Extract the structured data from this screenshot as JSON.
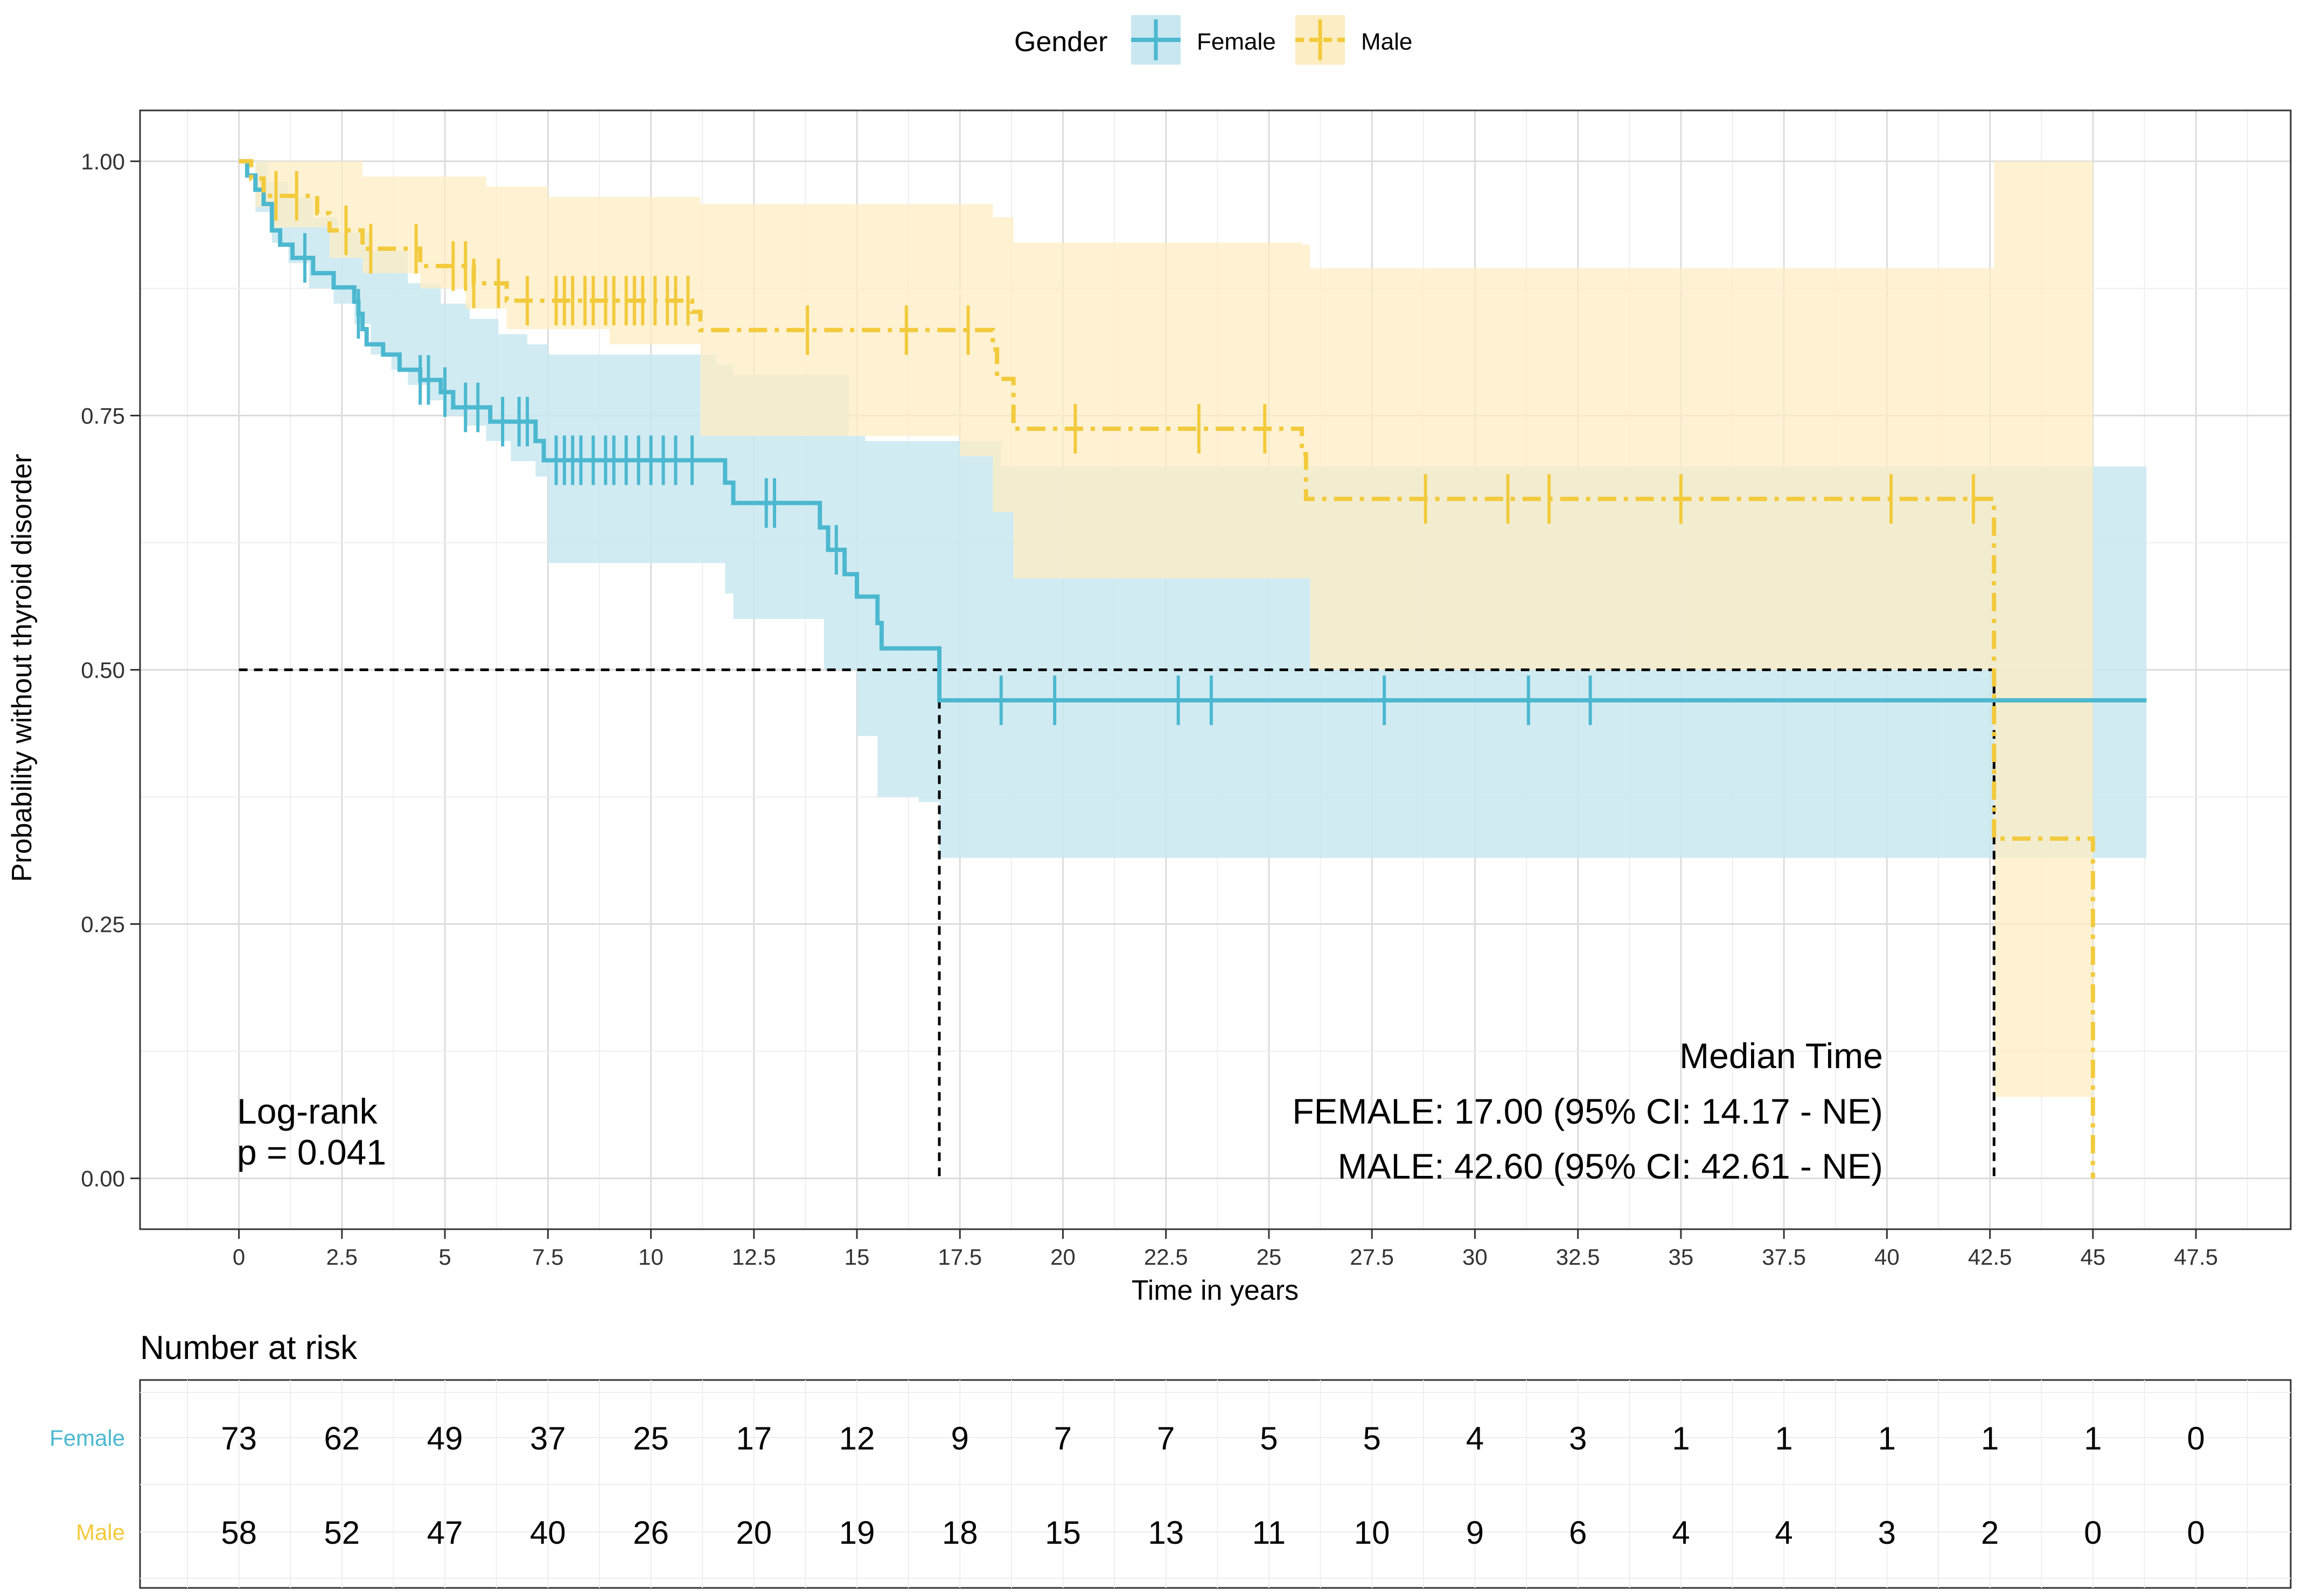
{
  "chart_data": {
    "type": "line",
    "subtype": "kaplan-meier",
    "xlabel": "Time in years",
    "ylabel": "Probability without thyroid disorder",
    "xlim": [
      -2.4,
      49.8
    ],
    "ylim": [
      -0.05,
      1.05
    ],
    "x_ticks": [
      "0",
      "2.5",
      "5",
      "7.5",
      "10",
      "12.5",
      "15",
      "17.5",
      "20",
      "22.5",
      "25",
      "27.5",
      "30",
      "32.5",
      "35",
      "37.5",
      "40",
      "42.5",
      "45",
      "47.5"
    ],
    "y_ticks": [
      "0.00",
      "0.25",
      "0.50",
      "0.75",
      "1.00"
    ],
    "grid": true,
    "legend": {
      "title": "Gender",
      "position": "top-center",
      "entries": [
        "Female",
        "Male"
      ]
    },
    "colors": {
      "Female": "#4cb8d0",
      "Male": "#f2ca3c",
      "Female_ci": "#c9e7f1",
      "Male_ci": "#fdedc4",
      "overlap": "#d4e4c6"
    },
    "series": [
      {
        "name": "Female",
        "steps": [
          [
            0,
            1.0
          ],
          [
            0.2,
            0.986
          ],
          [
            0.4,
            0.972
          ],
          [
            0.6,
            0.958
          ],
          [
            0.8,
            0.932
          ],
          [
            1.0,
            0.918
          ],
          [
            1.3,
            0.905
          ],
          [
            1.8,
            0.89
          ],
          [
            2.3,
            0.876
          ],
          [
            2.8,
            0.862
          ],
          [
            2.9,
            0.85
          ],
          [
            3.0,
            0.835
          ],
          [
            3.1,
            0.82
          ],
          [
            3.5,
            0.81
          ],
          [
            3.9,
            0.795
          ],
          [
            4.4,
            0.785
          ],
          [
            4.9,
            0.773
          ],
          [
            5.2,
            0.758
          ],
          [
            6.1,
            0.744
          ],
          [
            7.2,
            0.725
          ],
          [
            7.4,
            0.706
          ],
          [
            11.8,
            0.684
          ],
          [
            12.0,
            0.664
          ],
          [
            14.1,
            0.64
          ],
          [
            14.3,
            0.618
          ],
          [
            14.7,
            0.594
          ],
          [
            15.0,
            0.572
          ],
          [
            15.5,
            0.546
          ],
          [
            15.6,
            0.521
          ],
          [
            17.0,
            0.47
          ],
          [
            46.3,
            0.47
          ]
        ],
        "ci_upper": [
          [
            0,
            1.0
          ],
          [
            0.4,
            1.0
          ],
          [
            0.7,
            0.98
          ],
          [
            1.2,
            0.965
          ],
          [
            1.8,
            0.945
          ],
          [
            2.4,
            0.93
          ],
          [
            3.2,
            0.912
          ],
          [
            4.1,
            0.88
          ],
          [
            4.9,
            0.86
          ],
          [
            5.6,
            0.845
          ],
          [
            6.3,
            0.83
          ],
          [
            7.0,
            0.82
          ],
          [
            7.5,
            0.81
          ],
          [
            11.6,
            0.8
          ],
          [
            12.0,
            0.79
          ],
          [
            14.8,
            0.73
          ],
          [
            15.2,
            0.725
          ],
          [
            17.0,
            0.725
          ],
          [
            18.5,
            0.7
          ],
          [
            46.3,
            0.7
          ]
        ],
        "ci_lower": [
          [
            0,
            1.0
          ],
          [
            0.4,
            0.95
          ],
          [
            0.8,
            0.92
          ],
          [
            1.2,
            0.9
          ],
          [
            1.7,
            0.875
          ],
          [
            2.3,
            0.86
          ],
          [
            2.8,
            0.84
          ],
          [
            3.2,
            0.81
          ],
          [
            3.7,
            0.795
          ],
          [
            4.1,
            0.78
          ],
          [
            4.6,
            0.765
          ],
          [
            5.0,
            0.75
          ],
          [
            5.5,
            0.74
          ],
          [
            6.0,
            0.725
          ],
          [
            6.6,
            0.705
          ],
          [
            7.2,
            0.69
          ],
          [
            7.5,
            0.605
          ],
          [
            11.8,
            0.575
          ],
          [
            12.0,
            0.55
          ],
          [
            14.2,
            0.5
          ],
          [
            15.0,
            0.435
          ],
          [
            15.5,
            0.375
          ],
          [
            16.5,
            0.37
          ],
          [
            17.0,
            0.315
          ],
          [
            46.3,
            0.315
          ]
        ],
        "censored": [
          1.6,
          2.9,
          4.4,
          4.6,
          5.0,
          5.5,
          5.8,
          6.4,
          6.8,
          7.0,
          7.7,
          7.9,
          8.1,
          8.3,
          8.6,
          8.9,
          9.1,
          9.4,
          9.7,
          10.0,
          10.3,
          10.6,
          11.0,
          12.8,
          13.0,
          14.5,
          18.5,
          19.8,
          22.8,
          23.6,
          27.8,
          31.3,
          32.8
        ]
      },
      {
        "name": "Male",
        "steps": [
          [
            0,
            1.0
          ],
          [
            0.3,
            0.983
          ],
          [
            0.6,
            0.966
          ],
          [
            1.9,
            0.949
          ],
          [
            2.2,
            0.932
          ],
          [
            3.0,
            0.914
          ],
          [
            4.4,
            0.897
          ],
          [
            5.7,
            0.88
          ],
          [
            6.5,
            0.863
          ],
          [
            11.0,
            0.852
          ],
          [
            11.2,
            0.834
          ],
          [
            18.3,
            0.815
          ],
          [
            18.4,
            0.786
          ],
          [
            18.8,
            0.737
          ],
          [
            25.8,
            0.712
          ],
          [
            25.9,
            0.668
          ],
          [
            42.6,
            0.334
          ],
          [
            45.0,
            0.0
          ]
        ],
        "ci_upper": [
          [
            0,
            1.0
          ],
          [
            3.0,
            0.985
          ],
          [
            6.0,
            0.975
          ],
          [
            7.5,
            0.965
          ],
          [
            11.2,
            0.958
          ],
          [
            18.3,
            0.945
          ],
          [
            18.8,
            0.92
          ],
          [
            25.8,
            0.918
          ],
          [
            26.0,
            0.895
          ],
          [
            42.5,
            0.895
          ],
          [
            42.6,
            1.0
          ],
          [
            45.0,
            1.0
          ]
        ],
        "ci_lower": [
          [
            0,
            1.0
          ],
          [
            0.4,
            0.955
          ],
          [
            0.8,
            0.935
          ],
          [
            2.2,
            0.905
          ],
          [
            3.0,
            0.89
          ],
          [
            4.4,
            0.875
          ],
          [
            5.5,
            0.855
          ],
          [
            6.5,
            0.835
          ],
          [
            9.0,
            0.82
          ],
          [
            11.2,
            0.73
          ],
          [
            17.5,
            0.71
          ],
          [
            18.3,
            0.655
          ],
          [
            18.8,
            0.59
          ],
          [
            25.8,
            0.59
          ],
          [
            26.0,
            0.5
          ],
          [
            42.5,
            0.5
          ],
          [
            42.6,
            0.08
          ],
          [
            45.0,
            0.08
          ]
        ],
        "censored": [
          0.9,
          1.4,
          2.6,
          3.2,
          4.3,
          5.2,
          5.5,
          5.7,
          6.3,
          7.0,
          7.7,
          7.9,
          8.1,
          8.4,
          8.6,
          8.9,
          9.1,
          9.4,
          9.6,
          9.8,
          10.1,
          10.4,
          10.6,
          10.9,
          13.8,
          16.2,
          17.7,
          20.3,
          23.3,
          24.9,
          28.8,
          30.8,
          31.8,
          35.0,
          40.1,
          42.1
        ]
      }
    ],
    "median_lines": [
      {
        "y": 0.5,
        "x_start": 0,
        "x_end": 42.6
      },
      {
        "x": 17.0,
        "y_from": 0.5,
        "y_to": 0.0
      },
      {
        "x": 42.6,
        "y_from": 0.5,
        "y_to": 0.0
      }
    ],
    "annotations": {
      "logrank_line1": "Log-rank",
      "logrank_line2": "p = 0.041",
      "median_title": "Median Time",
      "median_female": "FEMALE: 17.00 (95% CI: 14.17 - NE)",
      "median_male": "MALE: 42.60 (95% CI: 42.61 - NE)"
    },
    "risk_table": {
      "title": "Number at risk",
      "rows": [
        {
          "label": "Female",
          "values": [
            "73",
            "62",
            "49",
            "37",
            "25",
            "17",
            "12",
            "9",
            "7",
            "7",
            "5",
            "5",
            "4",
            "3",
            "1",
            "1",
            "1",
            "1",
            "1",
            "0"
          ]
        },
        {
          "label": "Male",
          "values": [
            "58",
            "52",
            "47",
            "40",
            "26",
            "20",
            "19",
            "18",
            "15",
            "13",
            "11",
            "10",
            "9",
            "6",
            "4",
            "4",
            "3",
            "2",
            "0",
            "0"
          ]
        }
      ]
    }
  }
}
